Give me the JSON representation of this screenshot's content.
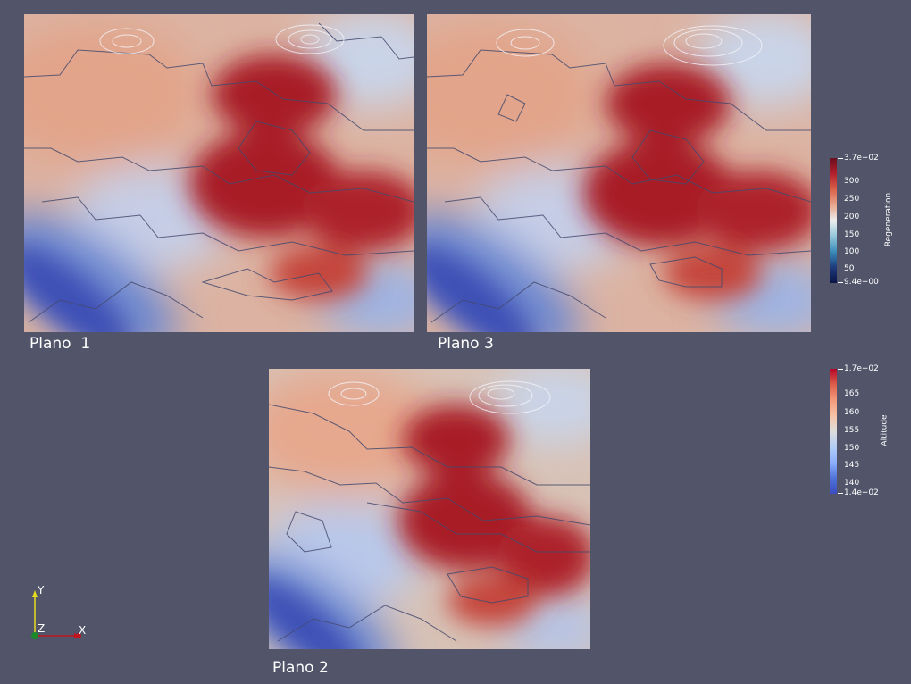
{
  "planes": [
    {
      "id": "plane-1",
      "label": "Plano  1"
    },
    {
      "id": "plane-3",
      "label": "Plano 3"
    },
    {
      "id": "plane-2",
      "label": "Plano 2"
    }
  ],
  "colorbars": {
    "regeneration": {
      "title": "Regeneration",
      "ticks": [
        "3.7e+02",
        "300",
        "250",
        "200",
        "150",
        "100",
        "50",
        "9.4e+00"
      ],
      "colors": [
        "#6b0f1f",
        "#b21f2c",
        "#d9614a",
        "#e8a58c",
        "#eeeeee",
        "#93c6da",
        "#3a8bb8",
        "#1e3a7c",
        "#0a1445"
      ]
    },
    "altitude": {
      "title": "Altitude",
      "ticks": [
        "1.7e+02",
        "165",
        "160",
        "155",
        "150",
        "145",
        "140",
        "1.4e+02"
      ],
      "colors": [
        "#b40426",
        "#dd5f4b",
        "#f49a7b",
        "#f7c3a7",
        "#dddddd",
        "#b3cdf5",
        "#8db0fe",
        "#4f72d8",
        "#3b4cc0"
      ]
    }
  },
  "axes": {
    "y": "Y",
    "z": "Z",
    "x": "X"
  },
  "colors": {
    "background": "#525469",
    "hot": "#a81c26",
    "warm": "#d97f66",
    "neutral": "#d8c8bf",
    "cool": "#9fb8e4",
    "cold": "#3a52b8",
    "contour_dark": "#454a6e",
    "contour_light": "#f4f4fa"
  }
}
